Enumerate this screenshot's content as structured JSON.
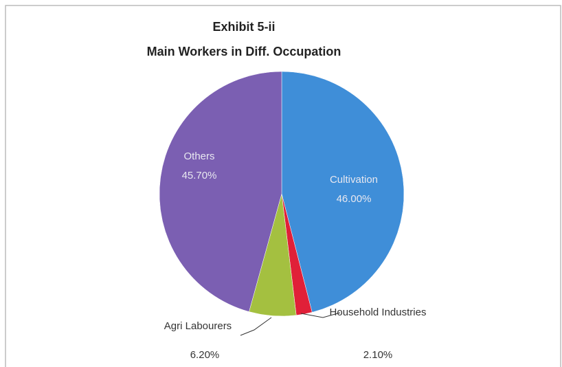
{
  "chart_data": {
    "type": "pie",
    "title": "Exhibit 5-ii",
    "subtitle": "Main Workers in Diff. Occupation",
    "categories": [
      "Cultivation",
      "Household Industries",
      "Agri Labourers",
      "Others"
    ],
    "values": [
      46.0,
      2.1,
      6.2,
      45.7
    ],
    "value_labels": [
      "46.00%",
      "2.10%",
      "6.20%",
      "45.70%"
    ],
    "colors": [
      "#3f8ed8",
      "#e02038",
      "#a4c040",
      "#7b5fb2"
    ]
  }
}
